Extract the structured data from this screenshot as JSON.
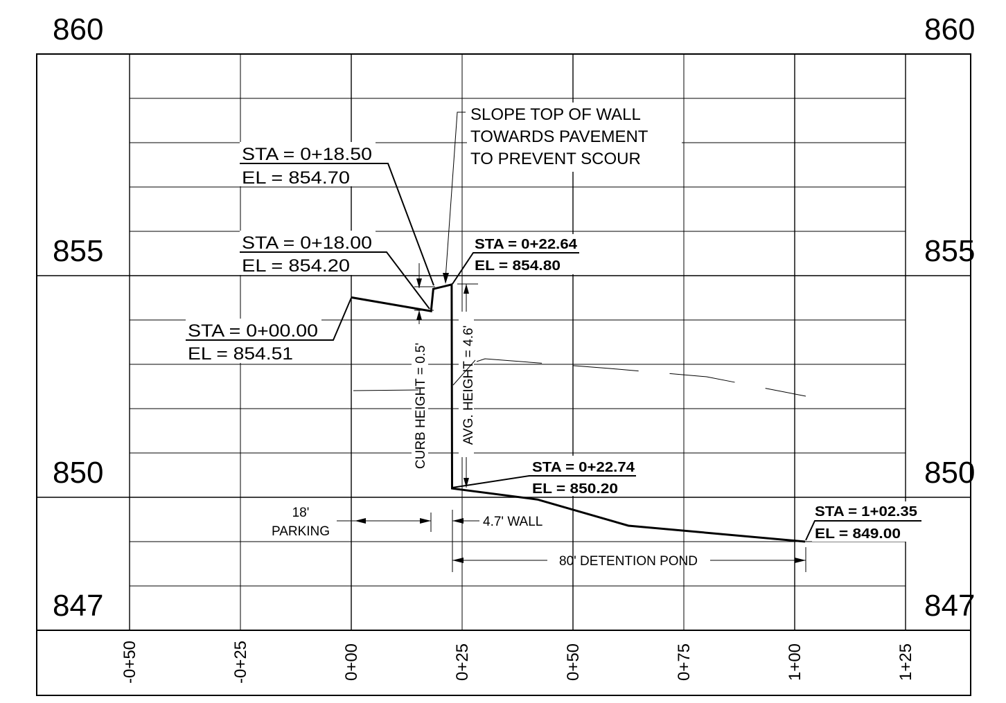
{
  "elevation_labels": {
    "left": [
      "860",
      "855",
      "850",
      "847"
    ],
    "right": [
      "860",
      "855",
      "850",
      "847"
    ]
  },
  "station_labels": [
    "-0+50",
    "-0+25",
    "0+00",
    "0+25",
    "0+50",
    "0+75",
    "1+00",
    "1+25"
  ],
  "callouts": {
    "c1": {
      "sta": "STA = 0+18.50",
      "el": "EL = 854.70"
    },
    "c2": {
      "sta": "STA = 0+18.00",
      "el": "EL = 854.20"
    },
    "c3": {
      "sta": "STA = 0+22.64",
      "el": "EL = 854.80"
    },
    "c4": {
      "sta": "STA = 0+00.00",
      "el": "EL = 854.51"
    },
    "c5": {
      "sta": "STA = 0+22.74",
      "el": "EL = 850.20"
    },
    "c6": {
      "sta": "STA = 1+02.35",
      "el": "EL = 849.00"
    }
  },
  "note": {
    "line1": "SLOPE TOP OF WALL",
    "line2": "TOWARDS PAVEMENT",
    "line3": "TO PREVENT SCOUR"
  },
  "dimensions": {
    "curb_height": "CURB HEIGHT = 0.5'",
    "avg_height": "AVG. HEIGHT = 4.6'",
    "parking_1": "18'",
    "parking_2": "PARKING",
    "wall": "4.7' WALL",
    "pond": "80' DETENTION POND"
  },
  "profile_points": [
    {
      "sta": 0.0,
      "el": 854.51
    },
    {
      "sta": 18.0,
      "el": 854.2
    },
    {
      "sta": 18.5,
      "el": 854.7
    },
    {
      "sta": 22.64,
      "el": 854.8
    },
    {
      "sta": 22.74,
      "el": 850.2
    },
    {
      "sta": 42.0,
      "el": 849.95
    },
    {
      "sta": 62.5,
      "el": 849.36
    },
    {
      "sta": 102.35,
      "el": 849.0
    }
  ]
}
